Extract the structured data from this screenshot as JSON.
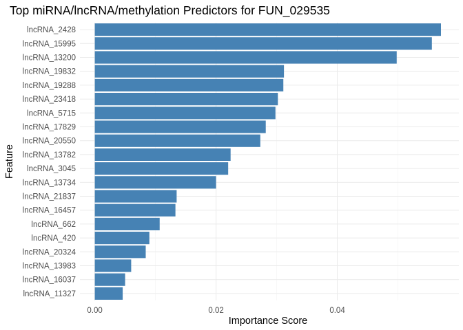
{
  "chart_data": {
    "type": "bar",
    "orientation": "horizontal",
    "title": "Top miRNA/lncRNA/methylation Predictors for FUN_029535",
    "xlabel": "Importance Score",
    "ylabel": "Feature",
    "xlim": [
      0,
      0.0572
    ],
    "xticks": [
      0.0,
      0.02,
      0.04
    ],
    "xtick_labels": [
      "0.00",
      "0.02",
      "0.04"
    ],
    "bar_color": "#4682B4",
    "grid": true,
    "legend": "none",
    "categories": [
      "lncRNA_2428",
      "lncRNA_15995",
      "lncRNA_13200",
      "lncRNA_19832",
      "lncRNA_19288",
      "lncRNA_23418",
      "lncRNA_5715",
      "lncRNA_17829",
      "lncRNA_20550",
      "lncRNA_13782",
      "lncRNA_3045",
      "lncRNA_13734",
      "lncRNA_21837",
      "lncRNA_16457",
      "lncRNA_662",
      "lncRNA_420",
      "lncRNA_20324",
      "lncRNA_13983",
      "lncRNA_16037",
      "lncRNA_11327"
    ],
    "values": [
      0.0571,
      0.0556,
      0.0498,
      0.0312,
      0.0311,
      0.0302,
      0.0298,
      0.0282,
      0.0273,
      0.0224,
      0.022,
      0.02,
      0.0135,
      0.0133,
      0.0107,
      0.009,
      0.0084,
      0.006,
      0.005,
      0.0046
    ]
  }
}
